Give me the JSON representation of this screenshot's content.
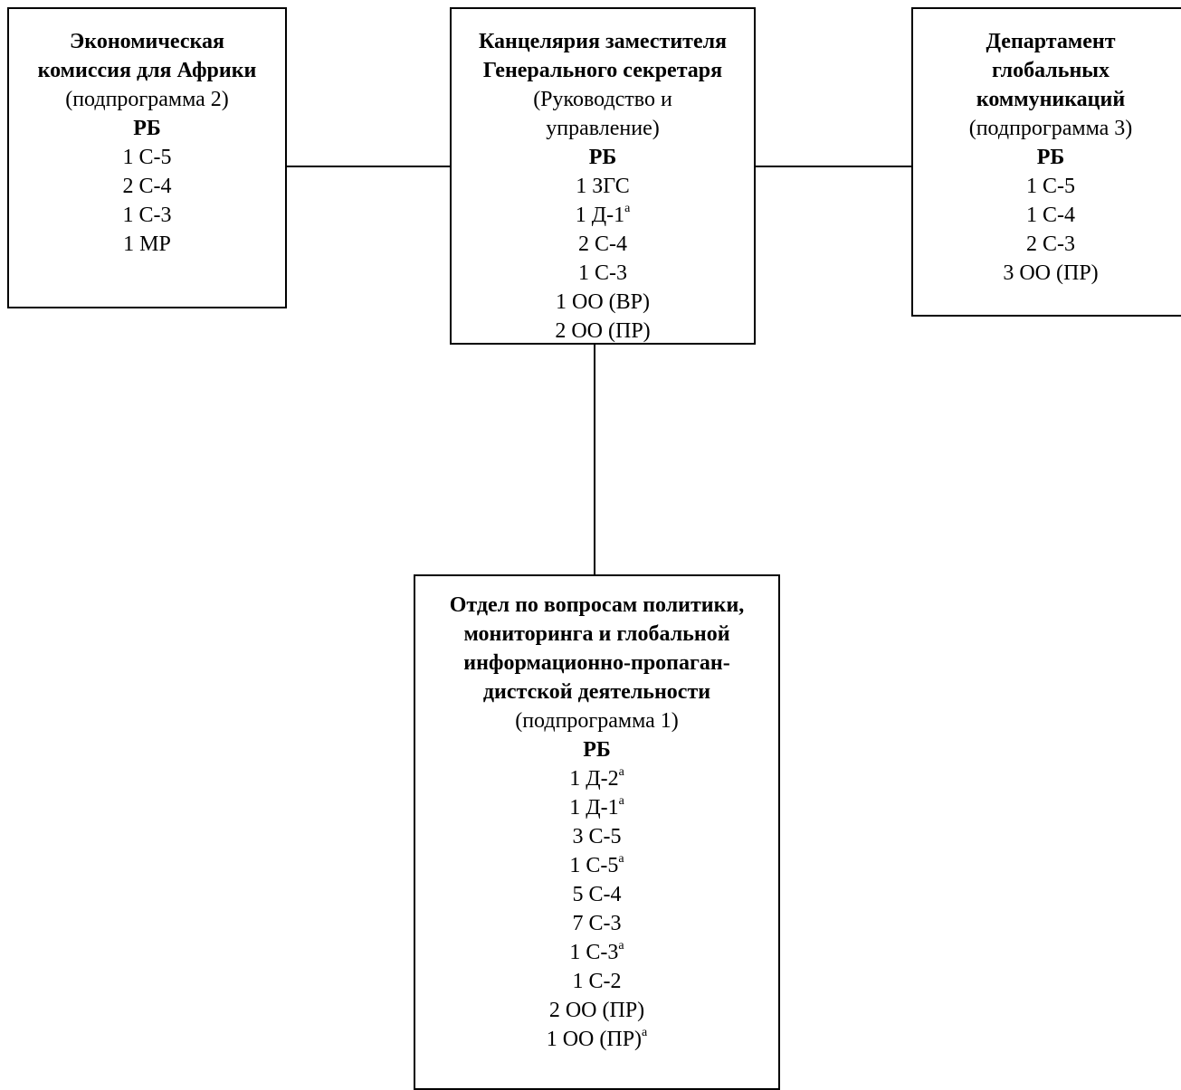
{
  "boxes": {
    "eca": {
      "title": [
        "Экономическая",
        "комиссия для Африки"
      ],
      "subtitle": [
        "(подпрограмма 2)"
      ],
      "budget_label": "РБ",
      "posts": [
        {
          "text": "1 С-5",
          "note": ""
        },
        {
          "text": "2 С-4",
          "note": ""
        },
        {
          "text": "1 С-3",
          "note": ""
        },
        {
          "text": "1 МР",
          "note": ""
        }
      ]
    },
    "osg": {
      "title": [
        "Канцелярия заместителя",
        "Генерального секретаря"
      ],
      "subtitle": [
        "(Руководство и",
        "управление)"
      ],
      "budget_label": "РБ",
      "posts": [
        {
          "text": "1 ЗГС",
          "note": ""
        },
        {
          "text": "1 Д-1",
          "note": "а"
        },
        {
          "text": "2 С-4",
          "note": ""
        },
        {
          "text": "1 С-3",
          "note": ""
        },
        {
          "text": "1 ОО (ВР)",
          "note": ""
        },
        {
          "text": "2 ОО (ПР)",
          "note": ""
        }
      ]
    },
    "dgc": {
      "title": [
        "Департамент",
        "глобальных",
        "коммуникаций"
      ],
      "subtitle": [
        "(подпрограмма 3)"
      ],
      "budget_label": "РБ",
      "posts": [
        {
          "text": "1 С-5",
          "note": ""
        },
        {
          "text": "1 С-4",
          "note": ""
        },
        {
          "text": "2 С-3",
          "note": ""
        },
        {
          "text": "3 ОО (ПР)",
          "note": ""
        }
      ]
    },
    "pmg": {
      "title": [
        "Отдел по вопросам политики,",
        "мониторинга и глобальной",
        "информационно-пропаган-",
        "дистской деятельности"
      ],
      "subtitle": [
        "(подпрограмма 1)"
      ],
      "budget_label": "РБ",
      "posts": [
        {
          "text": "1 Д-2",
          "note": "а"
        },
        {
          "text": "1 Д-1",
          "note": "а"
        },
        {
          "text": "3 С-5",
          "note": ""
        },
        {
          "text": "1 С-5",
          "note": "а"
        },
        {
          "text": "5 С-4",
          "note": ""
        },
        {
          "text": "7 С-3",
          "note": ""
        },
        {
          "text": "1 С-3",
          "note": "а"
        },
        {
          "text": "1 С-2",
          "note": ""
        },
        {
          "text": "2 ОО (ПР)",
          "note": ""
        },
        {
          "text": "1 ОО (ПР)",
          "note": "а"
        }
      ]
    }
  }
}
